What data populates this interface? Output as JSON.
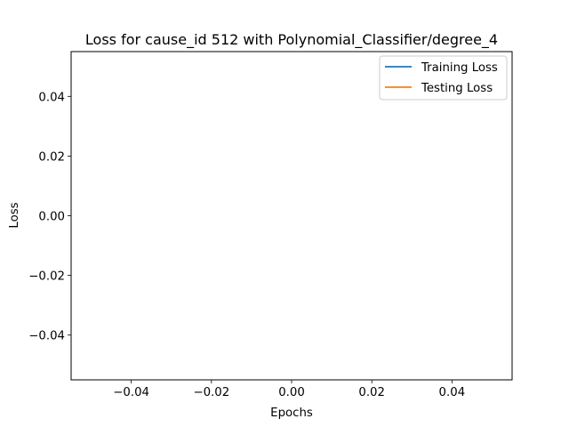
{
  "chart_data": {
    "type": "line",
    "title": "Loss for cause_id 512 with Polynomial_Classifier/degree_4",
    "xlabel": "Epochs",
    "ylabel": "Loss",
    "xlim": [
      -0.055,
      0.055
    ],
    "ylim": [
      -0.055,
      0.055
    ],
    "x_ticks": [
      -0.04,
      -0.02,
      0.0,
      0.02,
      0.04
    ],
    "x_tick_labels": [
      "−0.04",
      "−0.02",
      "0.00",
      "0.02",
      "0.04"
    ],
    "y_ticks": [
      -0.04,
      -0.02,
      0.0,
      0.02,
      0.04
    ],
    "y_tick_labels": [
      "−0.04",
      "−0.02",
      "0.00",
      "0.02",
      "0.04"
    ],
    "grid": false,
    "legend_position": "top-right",
    "series": [
      {
        "name": "Training Loss",
        "color": "#1f77b4",
        "x": [],
        "y": []
      },
      {
        "name": "Testing Loss",
        "color": "#ff7f0e",
        "x": [],
        "y": []
      }
    ]
  }
}
